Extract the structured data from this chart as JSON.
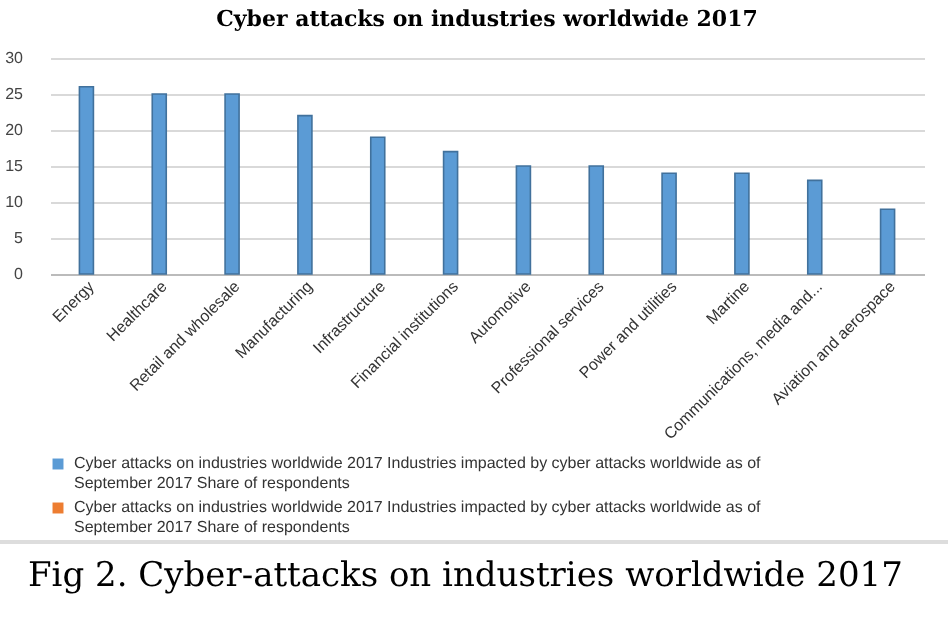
{
  "chart_data": {
    "type": "bar",
    "title": "Cyber attacks on industries worldwide 2017",
    "categories": [
      "Energy",
      "Healthcare",
      "Retail and wholesale",
      "Manufacturing",
      "Infrastructure",
      "Financial institutions",
      "Automotive",
      "Professional services",
      "Power and utilities",
      "Martine",
      "Communications, media and...",
      "Aviation and aerospace"
    ],
    "series": [
      {
        "name": "Cyber attacks on industries worldwide 2017 Industries impacted by cyber attacks worldwide as of September 2017 Share of respondents",
        "color": "#5b9bd5",
        "values": [
          26,
          25,
          25,
          22,
          19,
          17,
          15,
          15,
          14,
          14,
          13,
          9
        ]
      },
      {
        "name": "Cyber attacks on industries worldwide 2017 Industries impacted by cyber attacks worldwide as of September 2017 Share of respondents",
        "color": "#ed7d31",
        "values": [
          null,
          null,
          null,
          null,
          null,
          null,
          null,
          null,
          null,
          null,
          null,
          null
        ]
      }
    ],
    "ylim": [
      0,
      30
    ],
    "yticks": [
      0,
      5,
      10,
      15,
      20,
      25,
      30
    ],
    "grid": "y",
    "legend": "bottom",
    "annotations": [
      "Fig 2. Cyber-attacks on industries worldwide 2017"
    ]
  }
}
